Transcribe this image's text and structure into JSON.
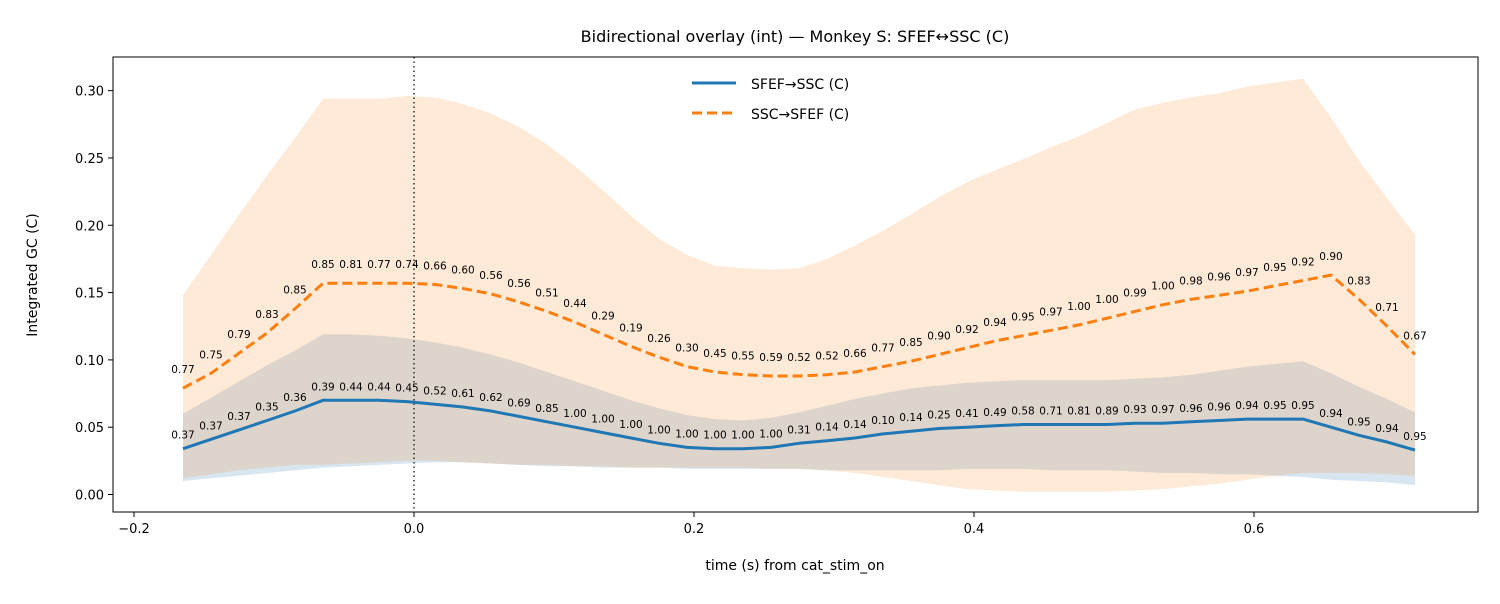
{
  "chart_data": {
    "type": "line",
    "title": "Bidirectional overlay (int) — Monkey S: SFEF↔SSC (C)",
    "xlabel": "time (s) from cat_stim_on",
    "ylabel": "Integrated GC (C)",
    "xlim": [
      -0.215,
      0.76
    ],
    "ylim": [
      -0.013,
      0.325
    ],
    "xticks": [
      -0.2,
      0.0,
      0.2,
      0.4,
      0.6
    ],
    "xtick_labels": [
      "−0.2",
      "0.0",
      "0.2",
      "0.4",
      "0.6"
    ],
    "yticks": [
      0.0,
      0.05,
      0.1,
      0.15,
      0.2,
      0.25,
      0.3
    ],
    "ytick_labels": [
      "0.00",
      "0.05",
      "0.10",
      "0.15",
      "0.20",
      "0.25",
      "0.30"
    ],
    "vline_x": 0.0,
    "legend_position": "top-center",
    "x": [
      -0.165,
      -0.145,
      -0.125,
      -0.105,
      -0.085,
      -0.065,
      -0.045,
      -0.025,
      -0.005,
      0.015,
      0.035,
      0.055,
      0.075,
      0.095,
      0.115,
      0.135,
      0.155,
      0.175,
      0.195,
      0.215,
      0.235,
      0.255,
      0.275,
      0.295,
      0.315,
      0.335,
      0.355,
      0.375,
      0.395,
      0.415,
      0.435,
      0.455,
      0.475,
      0.495,
      0.515,
      0.535,
      0.555,
      0.575,
      0.595,
      0.615,
      0.635,
      0.655,
      0.675,
      0.695,
      0.715
    ],
    "series": [
      {
        "name": "SFEF→SSC (C)",
        "color": "#1f77b4",
        "style": "solid",
        "values": [
          0.034,
          0.041,
          0.048,
          0.055,
          0.062,
          0.07,
          0.07,
          0.07,
          0.069,
          0.067,
          0.065,
          0.062,
          0.058,
          0.054,
          0.05,
          0.046,
          0.042,
          0.038,
          0.035,
          0.034,
          0.034,
          0.035,
          0.038,
          0.04,
          0.042,
          0.045,
          0.047,
          0.049,
          0.05,
          0.051,
          0.052,
          0.052,
          0.052,
          0.052,
          0.053,
          0.053,
          0.054,
          0.055,
          0.056,
          0.056,
          0.056,
          0.05,
          0.044,
          0.039,
          0.033
        ],
        "band_upper": [
          0.06,
          0.072,
          0.084,
          0.096,
          0.107,
          0.119,
          0.119,
          0.118,
          0.116,
          0.113,
          0.109,
          0.104,
          0.098,
          0.091,
          0.084,
          0.077,
          0.07,
          0.064,
          0.059,
          0.056,
          0.055,
          0.057,
          0.061,
          0.066,
          0.071,
          0.075,
          0.079,
          0.081,
          0.083,
          0.084,
          0.085,
          0.085,
          0.085,
          0.085,
          0.086,
          0.087,
          0.089,
          0.092,
          0.095,
          0.097,
          0.099,
          0.09,
          0.08,
          0.071,
          0.061
        ],
        "band_lower": [
          0.01,
          0.012,
          0.014,
          0.016,
          0.018,
          0.02,
          0.021,
          0.022,
          0.023,
          0.024,
          0.024,
          0.023,
          0.022,
          0.021,
          0.021,
          0.02,
          0.02,
          0.02,
          0.019,
          0.019,
          0.019,
          0.019,
          0.019,
          0.018,
          0.018,
          0.018,
          0.018,
          0.018,
          0.019,
          0.019,
          0.019,
          0.018,
          0.018,
          0.018,
          0.017,
          0.016,
          0.016,
          0.015,
          0.015,
          0.014,
          0.013,
          0.011,
          0.01,
          0.009,
          0.007
        ],
        "point_labels": [
          "0.37",
          "0.37",
          "0.37",
          "0.35",
          "0.36",
          "0.39",
          "0.44",
          "0.44",
          "0.45",
          "0.52",
          "0.61",
          "0.62",
          "0.69",
          "0.85",
          "1.00",
          "1.00",
          "1.00",
          "1.00",
          "1.00",
          "1.00",
          "1.00",
          "1.00",
          "0.31",
          "0.14",
          "0.14",
          "0.10",
          "0.14",
          "0.25",
          "0.41",
          "0.49",
          "0.58",
          "0.71",
          "0.81",
          "0.89",
          "0.93",
          "0.97",
          "0.96",
          "0.96",
          "0.94",
          "0.95",
          "0.95",
          "0.94",
          "0.95",
          "0.94",
          "0.95"
        ]
      },
      {
        "name": "SSC→SFEF (C)",
        "color": "#ff7f0e",
        "style": "dashed",
        "values": [
          0.079,
          0.09,
          0.105,
          0.12,
          0.138,
          0.157,
          0.157,
          0.157,
          0.157,
          0.156,
          0.153,
          0.149,
          0.143,
          0.136,
          0.128,
          0.119,
          0.11,
          0.102,
          0.095,
          0.091,
          0.089,
          0.088,
          0.088,
          0.089,
          0.091,
          0.095,
          0.099,
          0.104,
          0.109,
          0.114,
          0.118,
          0.122,
          0.126,
          0.131,
          0.136,
          0.141,
          0.145,
          0.148,
          0.151,
          0.155,
          0.159,
          0.163,
          0.145,
          0.125,
          0.104
        ],
        "band_upper": [
          0.148,
          0.178,
          0.208,
          0.237,
          0.265,
          0.294,
          0.294,
          0.294,
          0.296,
          0.295,
          0.29,
          0.283,
          0.273,
          0.26,
          0.244,
          0.226,
          0.207,
          0.19,
          0.178,
          0.17,
          0.168,
          0.167,
          0.168,
          0.175,
          0.185,
          0.196,
          0.208,
          0.221,
          0.232,
          0.241,
          0.249,
          0.258,
          0.266,
          0.276,
          0.286,
          0.291,
          0.295,
          0.298,
          0.303,
          0.306,
          0.309,
          0.28,
          0.248,
          0.22,
          0.193
        ],
        "band_lower": [
          0.012,
          0.015,
          0.018,
          0.02,
          0.022,
          0.022,
          0.023,
          0.024,
          0.025,
          0.025,
          0.024,
          0.023,
          0.022,
          0.022,
          0.021,
          0.021,
          0.02,
          0.02,
          0.02,
          0.02,
          0.02,
          0.019,
          0.019,
          0.018,
          0.016,
          0.013,
          0.01,
          0.007,
          0.004,
          0.003,
          0.002,
          0.002,
          0.002,
          0.002,
          0.003,
          0.004,
          0.006,
          0.008,
          0.011,
          0.014,
          0.016,
          0.016,
          0.016,
          0.015,
          0.014
        ],
        "point_labels": [
          "0.77",
          "0.75",
          "0.79",
          "0.83",
          "0.85",
          "0.85",
          "0.81",
          "0.77",
          "0.74",
          "0.66",
          "0.60",
          "0.56",
          "0.56",
          "0.51",
          "0.44",
          "0.29",
          "0.19",
          "0.26",
          "0.30",
          "0.45",
          "0.55",
          "0.59",
          "0.52",
          "0.52",
          "0.66",
          "0.77",
          "0.85",
          "0.90",
          "0.92",
          "0.94",
          "0.95",
          "0.97",
          "1.00",
          "1.00",
          "0.99",
          "1.00",
          "0.98",
          "0.96",
          "0.97",
          "0.95",
          "0.92",
          "0.90",
          "0.83",
          "0.71",
          "0.67"
        ]
      }
    ]
  }
}
